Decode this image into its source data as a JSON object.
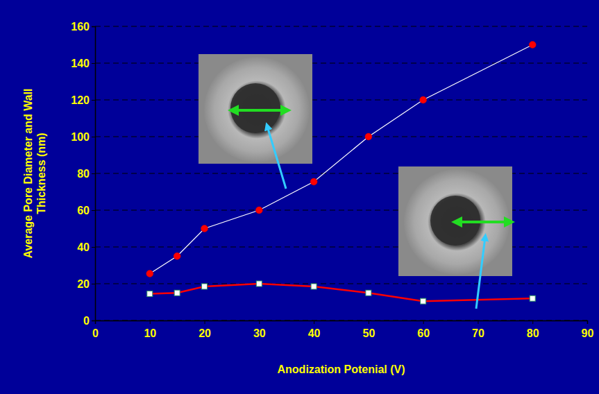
{
  "chart_data": {
    "type": "line",
    "x_label": "Anodization Potenial (V)",
    "y_label": "Average Pore Diameter and Wall Thickness (nm)",
    "x": [
      10,
      15,
      20,
      30,
      40,
      50,
      60,
      80
    ],
    "series": [
      {
        "color": "#ffffff",
        "marker": "circle",
        "line_style": "solid",
        "values": [
          25.5,
          35,
          50,
          60,
          75.5,
          100,
          120,
          150
        ]
      },
      {
        "color": "#ff0000",
        "marker": "square",
        "line_style": "solid",
        "values": [
          14.5,
          15,
          18.5,
          20,
          18.5,
          15,
          10.5,
          12
        ]
      }
    ],
    "xlim": [
      0,
      90
    ],
    "xticks": [
      0,
      10,
      20,
      30,
      40,
      50,
      60,
      70,
      80,
      90
    ],
    "ylim": [
      0,
      160
    ],
    "yticks": [
      0,
      20,
      40,
      60,
      80,
      100,
      120,
      140,
      160
    ],
    "grid": true
  }
}
